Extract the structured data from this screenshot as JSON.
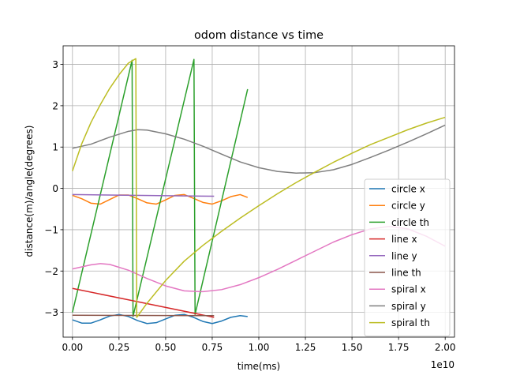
{
  "chart_data": {
    "type": "line",
    "title": "odom distance vs time",
    "xlabel": "time(ms)",
    "ylabel": "distance(m)/angle(degrees)",
    "x_offset_label": "1e10",
    "xlim": [
      -0.05,
      2.05
    ],
    "ylim": [
      -3.6,
      3.45
    ],
    "x_ticks": [
      0.0,
      0.25,
      0.5,
      0.75,
      1.0,
      1.25,
      1.5,
      1.75,
      2.0
    ],
    "x_tick_labels": [
      "0.00",
      "0.25",
      "0.50",
      "0.75",
      "1.00",
      "1.25",
      "1.50",
      "1.75",
      "2.00"
    ],
    "y_ticks": [
      -3,
      -2,
      -1,
      0,
      1,
      2,
      3
    ],
    "y_tick_labels": [
      "−3",
      "−2",
      "−1",
      "0",
      "1",
      "2",
      "3"
    ],
    "grid": true,
    "legend_position": "lower-right",
    "series": [
      {
        "name": "circle x",
        "color": "#1f77b4",
        "x": [
          0,
          0.05,
          0.1,
          0.15,
          0.2,
          0.25,
          0.3,
          0.35,
          0.4,
          0.45,
          0.5,
          0.55,
          0.6,
          0.65,
          0.7,
          0.75,
          0.8,
          0.85,
          0.9,
          0.94
        ],
        "y": [
          -3.18,
          -3.26,
          -3.26,
          -3.18,
          -3.09,
          -3.05,
          -3.1,
          -3.2,
          -3.27,
          -3.25,
          -3.16,
          -3.07,
          -3.05,
          -3.12,
          -3.22,
          -3.27,
          -3.21,
          -3.12,
          -3.08,
          -3.1
        ]
      },
      {
        "name": "circle y",
        "color": "#ff7f0e",
        "x": [
          0,
          0.05,
          0.1,
          0.15,
          0.2,
          0.25,
          0.3,
          0.35,
          0.4,
          0.45,
          0.5,
          0.55,
          0.6,
          0.65,
          0.7,
          0.75,
          0.8,
          0.85,
          0.9,
          0.94
        ],
        "y": [
          -0.17,
          -0.25,
          -0.36,
          -0.38,
          -0.27,
          -0.16,
          -0.16,
          -0.25,
          -0.35,
          -0.38,
          -0.28,
          -0.17,
          -0.15,
          -0.24,
          -0.34,
          -0.38,
          -0.3,
          -0.2,
          -0.15,
          -0.22
        ]
      },
      {
        "name": "circle th",
        "color": "#2ca02c",
        "x": [
          0,
          0.32,
          0.325,
          0.652,
          0.658,
          0.94
        ],
        "y": [
          -3.0,
          3.1,
          -3.1,
          3.12,
          -3.05,
          2.4
        ]
      },
      {
        "name": "line x",
        "color": "#d62728",
        "x": [
          0,
          0.76
        ],
        "y": [
          -2.42,
          -3.12
        ]
      },
      {
        "name": "line y",
        "color": "#9467bd",
        "x": [
          0,
          0.76
        ],
        "y": [
          -0.15,
          -0.19
        ]
      },
      {
        "name": "line th",
        "color": "#8c564b",
        "x": [
          0,
          0.76
        ],
        "y": [
          -3.07,
          -3.08
        ]
      },
      {
        "name": "spiral x",
        "color": "#e377c2",
        "x": [
          0,
          0.1,
          0.15,
          0.2,
          0.3,
          0.4,
          0.5,
          0.6,
          0.7,
          0.8,
          0.9,
          1.0,
          1.1,
          1.2,
          1.3,
          1.4,
          1.5,
          1.6,
          1.7,
          1.8,
          1.9,
          2.0
        ],
        "y": [
          -1.95,
          -1.85,
          -1.82,
          -1.84,
          -1.98,
          -2.18,
          -2.36,
          -2.48,
          -2.5,
          -2.45,
          -2.33,
          -2.16,
          -1.96,
          -1.74,
          -1.52,
          -1.3,
          -1.12,
          -0.98,
          -0.92,
          -0.98,
          -1.16,
          -1.4
        ]
      },
      {
        "name": "spiral y",
        "color": "#7f7f7f",
        "x": [
          0,
          0.1,
          0.2,
          0.3,
          0.35,
          0.4,
          0.5,
          0.6,
          0.7,
          0.8,
          0.9,
          1.0,
          1.1,
          1.2,
          1.3,
          1.4,
          1.5,
          1.6,
          1.7,
          1.8,
          1.9,
          2.0
        ],
        "y": [
          0.97,
          1.07,
          1.24,
          1.38,
          1.42,
          1.41,
          1.32,
          1.19,
          1.02,
          0.83,
          0.64,
          0.5,
          0.41,
          0.37,
          0.38,
          0.45,
          0.58,
          0.75,
          0.93,
          1.12,
          1.32,
          1.53
        ]
      },
      {
        "name": "spiral th",
        "color": "#bcbd22",
        "x": [
          0,
          0.05,
          0.1,
          0.15,
          0.2,
          0.25,
          0.3,
          0.34,
          0.345,
          0.4,
          0.5,
          0.6,
          0.7,
          0.8,
          0.9,
          1.0,
          1.1,
          1.2,
          1.3,
          1.4,
          1.5,
          1.6,
          1.7,
          1.8,
          1.9,
          2.0
        ],
        "y": [
          0.42,
          1.08,
          1.6,
          2.03,
          2.42,
          2.75,
          3.03,
          3.14,
          -3.12,
          -2.78,
          -2.23,
          -1.76,
          -1.38,
          -1.04,
          -0.72,
          -0.42,
          -0.13,
          0.14,
          0.39,
          0.63,
          0.85,
          1.06,
          1.24,
          1.42,
          1.58,
          1.72
        ]
      }
    ]
  }
}
